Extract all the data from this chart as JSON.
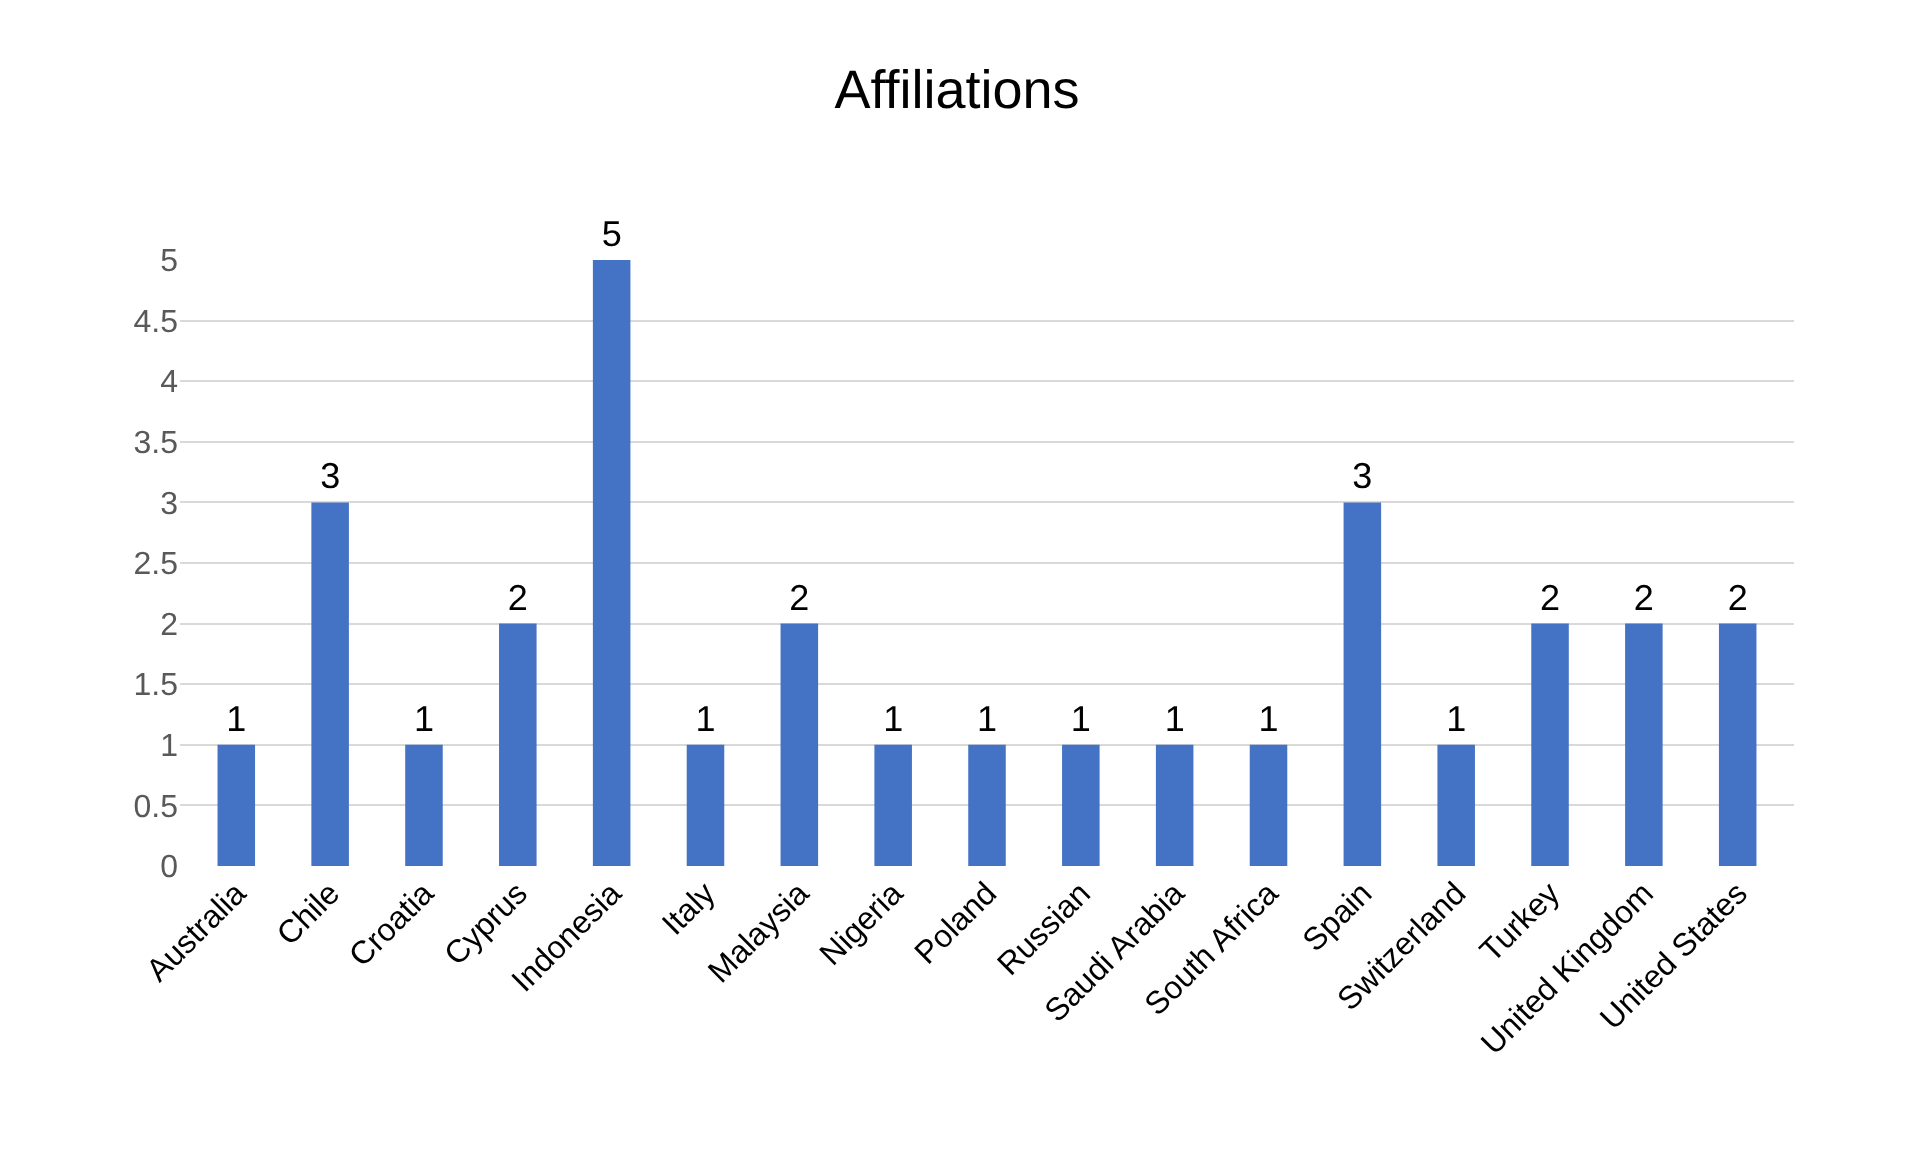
{
  "chart_data": {
    "type": "bar",
    "title": "Affiliations",
    "categories": [
      "Australia",
      "Chile",
      "Croatia",
      "Cyprus",
      "Indonesia",
      "Italy",
      "Malaysia",
      "Nigeria",
      "Poland",
      "Russian",
      "Saudi Arabia",
      "South Africa",
      "Spain",
      "Switzerland",
      "Turkey",
      "United Kingdom",
      "United States"
    ],
    "values": [
      1,
      3,
      1,
      2,
      5,
      1,
      2,
      1,
      1,
      1,
      1,
      1,
      3,
      1,
      2,
      2,
      2
    ],
    "color": "#4472c4",
    "ylim": [
      0,
      5
    ],
    "yticks": [
      0,
      0.5,
      1,
      1.5,
      2,
      2.5,
      3,
      3.5,
      4,
      4.5,
      5
    ],
    "grid": "y",
    "data_labels": true
  }
}
